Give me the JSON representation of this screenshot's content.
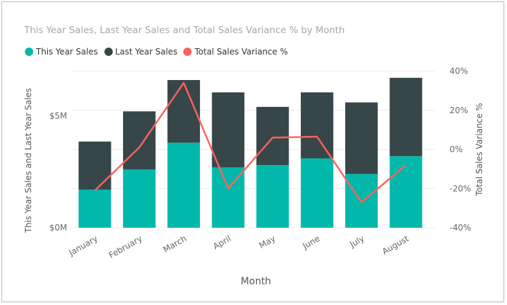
{
  "chart_data": {
    "type": "bar",
    "title": "This Year Sales, Last Year Sales and Total Sales Variance % by Month",
    "xlabel": "Month",
    "ylabel": "This Year Sales and Last Year Sales",
    "y2label": "Total Sales Variance %",
    "categories": [
      "January",
      "February",
      "March",
      "April",
      "May",
      "June",
      "July",
      "August"
    ],
    "series": [
      {
        "name": "This Year Sales",
        "kind": "bar",
        "axis": "left",
        "color": "#01b8aa",
        "values": [
          1.7,
          2.6,
          3.8,
          2.7,
          2.8,
          3.1,
          2.4,
          3.2
        ]
      },
      {
        "name": "Last Year Sales",
        "kind": "bar",
        "axis": "left",
        "color": "#374649",
        "values": [
          2.15,
          2.6,
          2.8,
          3.35,
          2.6,
          2.95,
          3.2,
          3.5
        ]
      },
      {
        "name": "Total Sales Variance %",
        "kind": "line",
        "axis": "right",
        "color": "#fd625e",
        "values": [
          -21,
          1,
          34,
          -20,
          6,
          6.5,
          -27,
          -8
        ]
      }
    ],
    "ylim": [
      0,
      7
    ],
    "y2lim": [
      -40,
      40
    ],
    "yticks": [
      {
        "v": 0,
        "label": "$0M"
      },
      {
        "v": 5,
        "label": "$5M"
      }
    ],
    "y2ticks": [
      {
        "v": 40,
        "label": "40%"
      },
      {
        "v": 20,
        "label": "20%"
      },
      {
        "v": 0,
        "label": "0%"
      },
      {
        "v": -20,
        "label": "-20%"
      },
      {
        "v": -40,
        "label": "-40%"
      }
    ],
    "legend_position": "top-left",
    "grid": true,
    "bar_mode": "stacked"
  }
}
